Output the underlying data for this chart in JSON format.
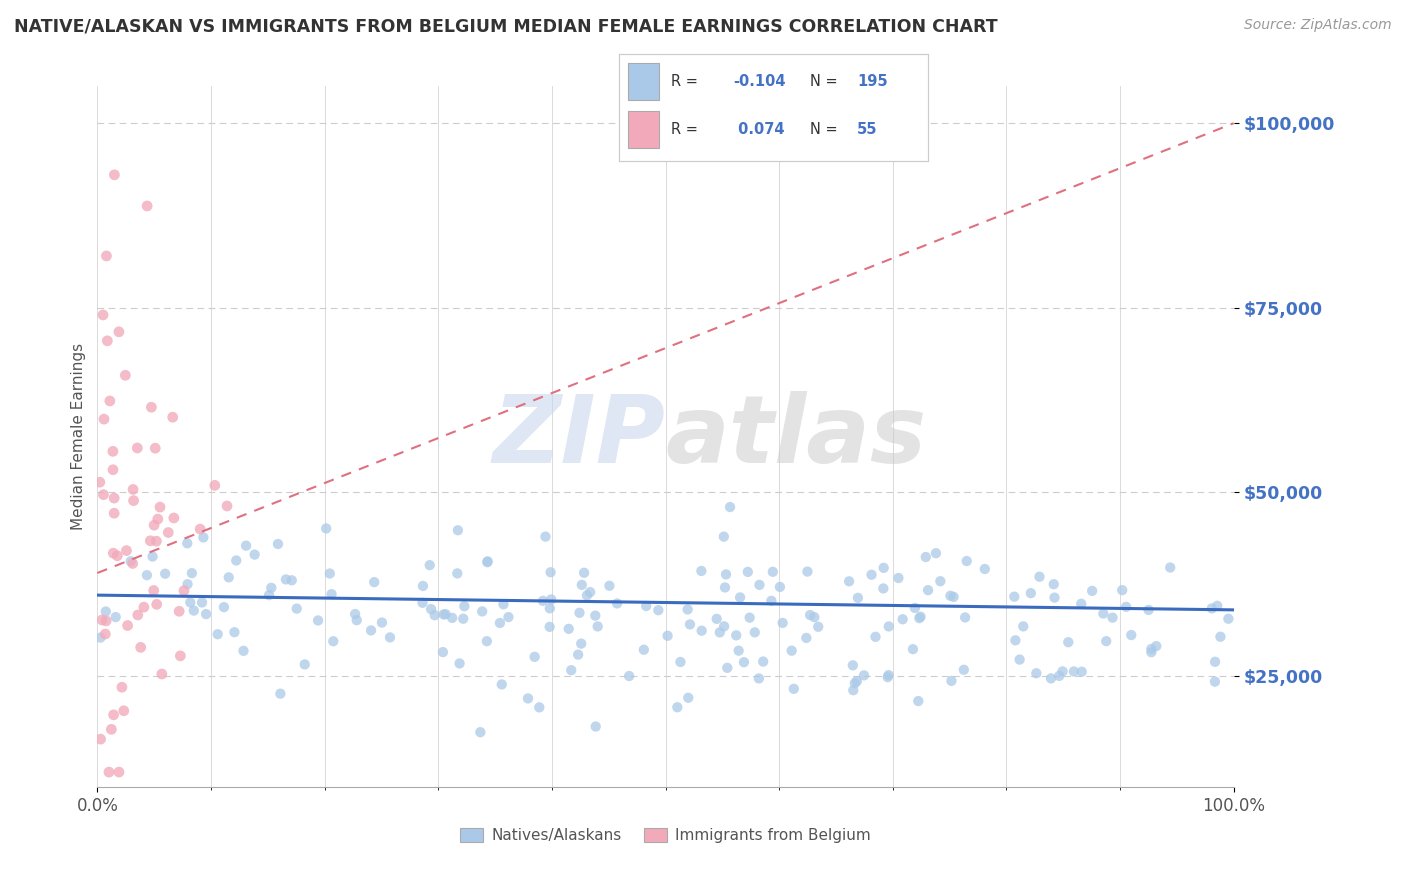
{
  "title": "NATIVE/ALASKAN VS IMMIGRANTS FROM BELGIUM MEDIAN FEMALE EARNINGS CORRELATION CHART",
  "source": "Source: ZipAtlas.com",
  "ylabel": "Median Female Earnings",
  "xmin": 0.0,
  "xmax": 1.0,
  "ymin": 10000,
  "ymax": 105000,
  "yticks": [
    25000,
    50000,
    75000,
    100000
  ],
  "ytick_labels": [
    "$25,000",
    "$50,000",
    "$75,000",
    "$100,000"
  ],
  "xticks": [
    0.0,
    1.0
  ],
  "xtick_labels": [
    "0.0%",
    "100.0%"
  ],
  "blue_R": -0.104,
  "blue_N": 195,
  "pink_R": 0.074,
  "pink_N": 55,
  "blue_color": "#aac9e8",
  "pink_color": "#f2aabb",
  "blue_line_color": "#3a6bbf",
  "pink_line_color": "#e07080",
  "legend_label_blue": "Natives/Alaskans",
  "legend_label_pink": "Immigrants from Belgium",
  "watermark_zip": "ZIP",
  "watermark_atlas": "atlas",
  "background_color": "#ffffff",
  "title_color": "#333333",
  "title_fontsize": 12.5,
  "axis_label_color": "#555555",
  "tick_color_y": "#4472c4",
  "tick_color_x": "#555555",
  "source_color": "#999999",
  "legend_color": "#4472c4",
  "grid_color": "#cccccc"
}
